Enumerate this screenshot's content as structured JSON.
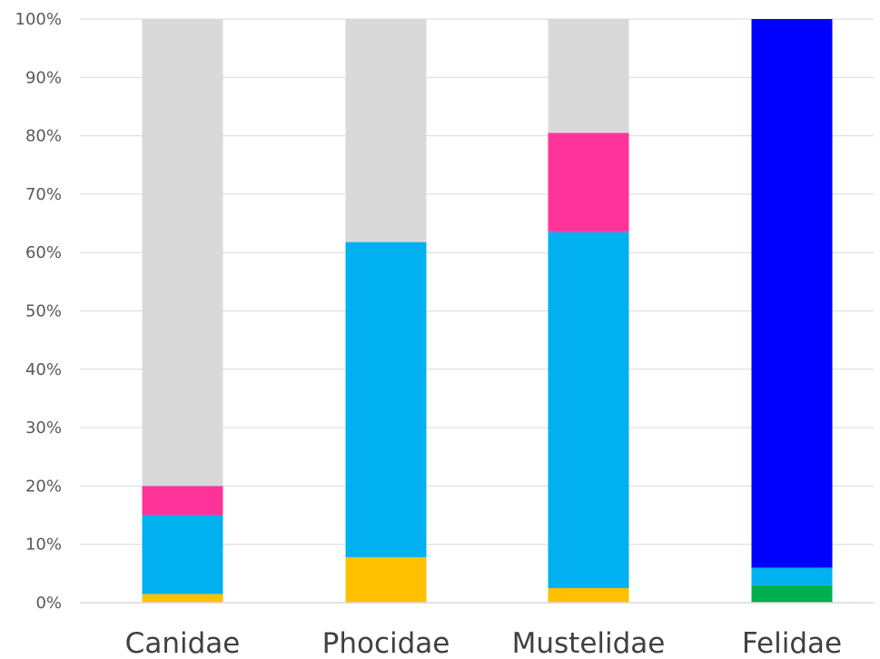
{
  "chart_data": {
    "type": "bar",
    "stacked": true,
    "percent_stacked": true,
    "categories": [
      "Canidae",
      "Phocidae",
      "Mustelidae",
      "Felidae"
    ],
    "series": [
      {
        "color": "#ffc000",
        "values": [
          1.5,
          7.8,
          2.5,
          0
        ]
      },
      {
        "color": "#00b050",
        "values": [
          0,
          0,
          0,
          3
        ]
      },
      {
        "color": "#00b0f0",
        "values": [
          13.5,
          54,
          61,
          3
        ]
      },
      {
        "color": "#ff3399",
        "values": [
          5,
          0,
          17,
          0
        ]
      },
      {
        "color": "#0000ff",
        "values": [
          0,
          0,
          0,
          94
        ]
      },
      {
        "color": "#d9d9d9",
        "values": [
          80,
          38.2,
          19.5,
          0
        ]
      }
    ],
    "y_ticks": [
      "0%",
      "10%",
      "20%",
      "30%",
      "40%",
      "50%",
      "60%",
      "70%",
      "80%",
      "90%",
      "100%"
    ],
    "ylim": [
      0,
      100
    ],
    "grid": true,
    "legend": "none",
    "title": "",
    "xlabel": "",
    "ylabel": ""
  }
}
